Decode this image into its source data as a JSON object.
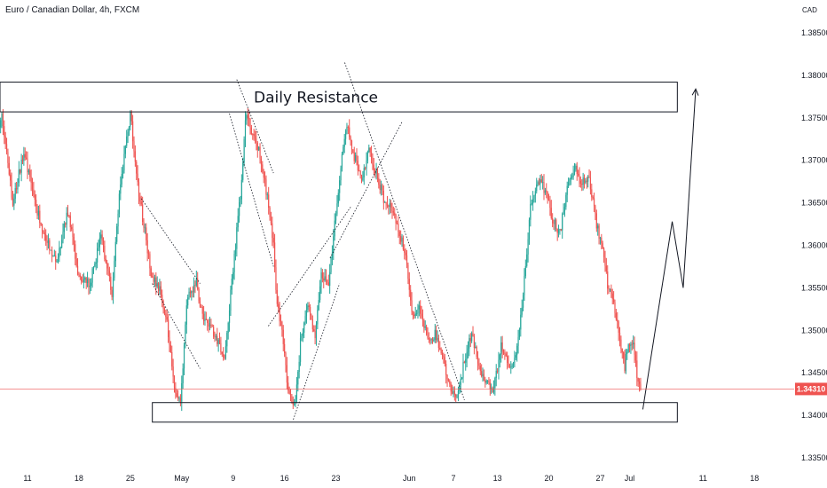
{
  "header": {
    "symbol_title": "Euro / Canadian Dollar, 4h, FXCM",
    "currency": "CAD"
  },
  "colors": {
    "bull": "#26a69a",
    "bear": "#ef5350",
    "price_line": "#ef5350",
    "drawing": "#131722"
  },
  "chart_data": {
    "type": "candlestick",
    "title": "Euro / Canadian Dollar, 4h, FXCM",
    "xlabel": "",
    "ylabel": "",
    "grid": false,
    "ylim": [
      1.332,
      1.39
    ],
    "y_ticks": [
      "1.38500",
      "1.38000",
      "1.37500",
      "1.37000",
      "1.36500",
      "1.36000",
      "1.35500",
      "1.35000",
      "1.34500",
      "1.34000",
      "1.33500"
    ],
    "x_ticks": [
      {
        "label": "11",
        "day": 11
      },
      {
        "label": "18",
        "day": 18
      },
      {
        "label": "25",
        "day": 25
      },
      {
        "label": "May",
        "day": 32
      },
      {
        "label": "9",
        "day": 39
      },
      {
        "label": "16",
        "day": 46
      },
      {
        "label": "23",
        "day": 53
      },
      {
        "label": "Jun",
        "day": 63
      },
      {
        "label": "7",
        "day": 69
      },
      {
        "label": "13",
        "day": 75
      },
      {
        "label": "20",
        "day": 82
      },
      {
        "label": "27",
        "day": 89
      },
      {
        "label": "Jul",
        "day": 93
      },
      {
        "label": "11",
        "day": 103
      },
      {
        "label": "18",
        "day": 110
      }
    ],
    "last_price": {
      "label": "1.34310",
      "value": 1.3431
    },
    "candle_path": [
      [
        5,
        1.366
      ],
      [
        6,
        1.368
      ],
      [
        7.5,
        1.3755
      ],
      [
        9,
        1.365
      ],
      [
        10.5,
        1.371
      ],
      [
        12,
        1.365
      ],
      [
        13.5,
        1.361
      ],
      [
        15,
        1.358
      ],
      [
        16.5,
        1.364
      ],
      [
        18,
        1.356
      ],
      [
        19.5,
        1.3555
      ],
      [
        21,
        1.361
      ],
      [
        22.5,
        1.3545
      ],
      [
        23.5,
        1.366
      ],
      [
        25,
        1.3755
      ],
      [
        26,
        1.367
      ],
      [
        28,
        1.356
      ],
      [
        29,
        1.355
      ],
      [
        30,
        1.351
      ],
      [
        31,
        1.343
      ],
      [
        31.8,
        1.3415
      ],
      [
        32.8,
        1.354
      ],
      [
        34,
        1.3555
      ],
      [
        35,
        1.351
      ],
      [
        36.5,
        1.3495
      ],
      [
        37.8,
        1.3465
      ],
      [
        38.8,
        1.3555
      ],
      [
        40,
        1.366
      ],
      [
        40.8,
        1.376
      ],
      [
        41.5,
        1.373
      ],
      [
        42.5,
        1.3715
      ],
      [
        43.5,
        1.3665
      ],
      [
        44.5,
        1.36
      ],
      [
        45,
        1.353
      ],
      [
        45.8,
        1.349
      ],
      [
        46.5,
        1.3425
      ],
      [
        47.5,
        1.3415
      ],
      [
        48.2,
        1.349
      ],
      [
        49.2,
        1.353
      ],
      [
        50.2,
        1.349
      ],
      [
        51,
        1.357
      ],
      [
        52,
        1.355
      ],
      [
        53,
        1.364
      ],
      [
        54,
        1.3715
      ],
      [
        54.5,
        1.3745
      ],
      [
        55.5,
        1.3705
      ],
      [
        56.5,
        1.368
      ],
      [
        57.5,
        1.371
      ],
      [
        58.5,
        1.3685
      ],
      [
        59.5,
        1.3655
      ],
      [
        60.5,
        1.3645
      ],
      [
        61.5,
        1.362
      ],
      [
        62.5,
        1.359
      ],
      [
        63.5,
        1.3515
      ],
      [
        64.5,
        1.3525
      ],
      [
        65.5,
        1.349
      ],
      [
        66.5,
        1.3495
      ],
      [
        67.5,
        1.347
      ],
      [
        68.5,
        1.3435
      ],
      [
        69.5,
        1.342
      ],
      [
        70.5,
        1.3465
      ],
      [
        71.5,
        1.3495
      ],
      [
        72.5,
        1.3455
      ],
      [
        73.5,
        1.344
      ],
      [
        74.5,
        1.343
      ],
      [
        75.5,
        1.3485
      ],
      [
        76.5,
        1.3455
      ],
      [
        77.5,
        1.3465
      ],
      [
        78.5,
        1.3545
      ],
      [
        79.5,
        1.3645
      ],
      [
        80.5,
        1.368
      ],
      [
        81.5,
        1.3665
      ],
      [
        82.5,
        1.363
      ],
      [
        83.5,
        1.3615
      ],
      [
        84.5,
        1.3665
      ],
      [
        85.5,
        1.3695
      ],
      [
        86.5,
        1.3675
      ],
      [
        87.5,
        1.368
      ],
      [
        88.5,
        1.3625
      ],
      [
        89.5,
        1.359
      ],
      [
        90,
        1.355
      ],
      [
        90.8,
        1.3535
      ],
      [
        91.5,
        1.35
      ],
      [
        92.3,
        1.3455
      ],
      [
        92.8,
        1.3485
      ],
      [
        93.5,
        1.348
      ],
      [
        94.2,
        1.3435
      ],
      [
        94.6,
        1.3431
      ]
    ],
    "drawings": {
      "resistance_zone": {
        "label": "Daily Resistance",
        "day_from": 0,
        "day_to": 99.5,
        "price_low": 1.3757,
        "price_high": 1.3792
      },
      "support_zone": {
        "day_from": 28,
        "day_to": 99.5,
        "price_low": 1.3392,
        "price_high": 1.3415
      },
      "projection_path": [
        [
          94.8,
          1.3407
        ],
        [
          98.8,
          1.3628
        ],
        [
          100.3,
          1.355
        ],
        [
          102,
          1.3784
        ]
      ],
      "trendlines": [
        [
          [
            26.5,
            1.3655
          ],
          [
            34.5,
            1.3555
          ]
        ],
        [
          [
            28,
            1.3555
          ],
          [
            34.5,
            1.3455
          ]
        ],
        [
          [
            39.5,
            1.3795
          ],
          [
            44.5,
            1.3685
          ]
        ],
        [
          [
            38.5,
            1.3755
          ],
          [
            44.5,
            1.3575
          ]
        ],
        [
          [
            43.8,
            1.3505
          ],
          [
            55,
            1.3645
          ]
        ],
        [
          [
            47.2,
            1.3395
          ],
          [
            53.5,
            1.3555
          ]
        ],
        [
          [
            52.2,
            1.3585
          ],
          [
            62,
            1.3745
          ]
        ],
        [
          [
            54.2,
            1.3815
          ],
          [
            70.5,
            1.3418
          ]
        ]
      ]
    }
  }
}
